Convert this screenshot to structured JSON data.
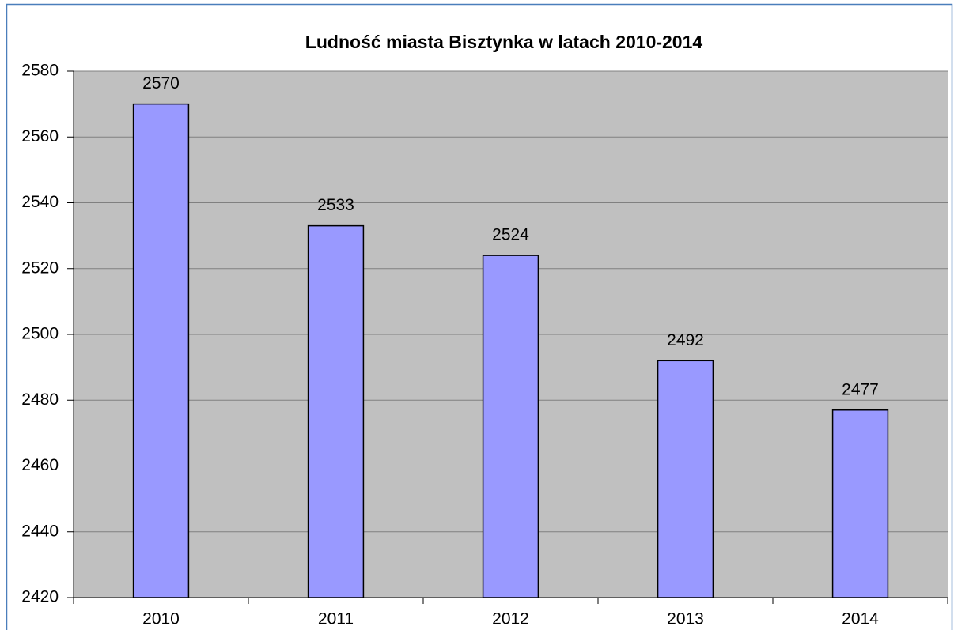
{
  "chart_data": {
    "type": "bar",
    "title": "Ludność miasta Bisztynka w latach 2010-2014",
    "categories": [
      "2010",
      "2011",
      "2012",
      "2013",
      "2014"
    ],
    "values": [
      2570,
      2533,
      2524,
      2492,
      2477
    ],
    "color": "#9999ff",
    "ylim": [
      2420,
      2580
    ],
    "yticks": [
      2420,
      2440,
      2460,
      2480,
      2500,
      2520,
      2540,
      2560,
      2580
    ],
    "grid": true
  }
}
